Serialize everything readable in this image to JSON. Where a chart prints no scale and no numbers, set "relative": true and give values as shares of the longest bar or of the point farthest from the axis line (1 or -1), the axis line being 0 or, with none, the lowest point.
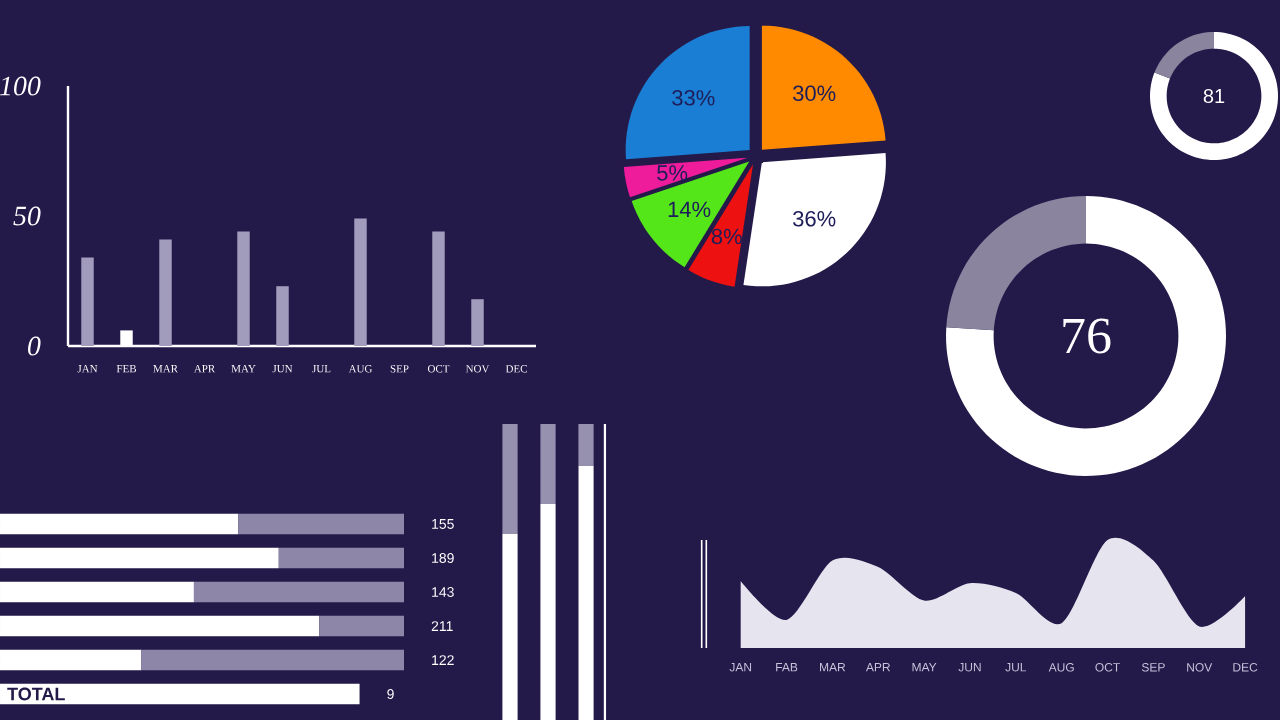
{
  "chart_data": [
    {
      "type": "bar",
      "categories": [
        "JAN",
        "FEB",
        "MAR",
        "APR",
        "MAY",
        "JUN",
        "JUL",
        "AUG",
        "SEP",
        "OCT",
        "NOV",
        "DEC"
      ],
      "values": [
        34,
        6,
        41,
        null,
        44,
        23,
        null,
        49,
        null,
        44,
        18,
        null
      ],
      "colors": [
        "#a29cbc",
        "#ffffff",
        "#a29cbc",
        "#a29cbc",
        "#a29cbc",
        "#a29cbc",
        "#a29cbc",
        "#a29cbc",
        "#a29cbc",
        "#a29cbc",
        "#a29cbc",
        "#a29cbc"
      ],
      "ylim": [
        0,
        100
      ],
      "yticks": [
        0,
        50,
        100
      ]
    },
    {
      "type": "pie",
      "categories": [
        null,
        null,
        null,
        null,
        null,
        null
      ],
      "values": [
        30,
        36,
        8,
        14,
        5,
        33
      ],
      "colors": [
        "#ff8a00",
        "#ffffff",
        "#ee1111",
        "#55e61a",
        "#ee1b9a",
        "#1a7fd4"
      ],
      "value_labels": [
        "30%",
        "36%",
        "8%",
        "14%",
        "5%",
        "33%"
      ]
    },
    {
      "type": "donut",
      "categories": [
        null,
        null
      ],
      "values": [
        81,
        19
      ],
      "colors": [
        "#ffffff",
        "#8a849f"
      ],
      "value_labels": [
        "81",
        null
      ]
    },
    {
      "type": "donut",
      "categories": [
        null,
        null
      ],
      "values": [
        76,
        24
      ],
      "colors": [
        "#ffffff",
        "#8a849f"
      ],
      "value_labels": [
        "76",
        null
      ]
    },
    {
      "type": "bar",
      "orientation": "horizontal",
      "stacked": true,
      "relative": true,
      "categories": [
        null,
        null,
        null,
        null,
        null,
        "TOTAL"
      ],
      "series": [
        {
          "color": "#ffffff",
          "values": [
            0.59,
            0.69,
            0.48,
            0.79,
            0.35,
            0.89
          ]
        },
        {
          "color": "#8d86a8",
          "values": [
            0.41,
            0.31,
            0.52,
            0.21,
            0.65,
            null
          ]
        }
      ],
      "value_labels": [
        "155",
        "189",
        "143",
        "211",
        "122",
        "9"
      ]
    },
    {
      "type": "bar",
      "stacked": true,
      "relative": true,
      "categories": [
        null,
        null,
        null
      ],
      "series": [
        {
          "color": "#ffffff",
          "values": [
            0.63,
            0.73,
            0.86
          ]
        },
        {
          "color": "#9791b0",
          "values": [
            0.37,
            0.27,
            0.14
          ]
        }
      ]
    },
    {
      "type": "area",
      "relative": true,
      "categories": [
        "JAN",
        "FAB",
        "MAR",
        "APR",
        "MAY",
        "JUN",
        "JUL",
        "AUG",
        "OCT",
        "SEP",
        "NOV",
        "DEC"
      ],
      "values": [
        0.62,
        0.26,
        0.81,
        0.75,
        0.44,
        0.6,
        0.51,
        0.23,
        1,
        0.81,
        0.2,
        0.48
      ],
      "color": "#e6e4ee"
    }
  ]
}
